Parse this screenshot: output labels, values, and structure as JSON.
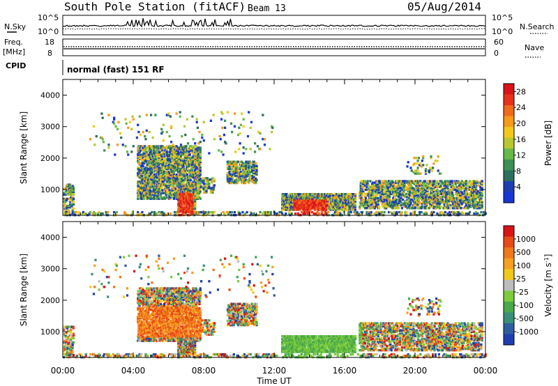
{
  "header": {
    "station": "South Pole Station (fitACF)",
    "beam": "Beam 13",
    "date": "05/Aug/2014"
  },
  "panels": {
    "nsky_label": "N.Sky",
    "nsky_ticks": [
      "10^5",
      "10^0"
    ],
    "nsearch_label": "N.Search",
    "nsearch_ticks": [
      "10^5",
      "10^0"
    ],
    "freq_label": "Freq.",
    "freq_unit": "[MHz]",
    "freq_ticks": [
      "18",
      "8"
    ],
    "nave_label": "Nave",
    "nave_ticks": [
      "60",
      "0"
    ],
    "cpid_label": "CPID",
    "cpid_text": "normal (fast) 151 RF"
  },
  "chart_data": [
    {
      "type": "heatmap",
      "name": "power",
      "ylabel": "Slant Range [km]",
      "xlabel": "",
      "x_ticks": [
        "00:00",
        "04:00",
        "08:00",
        "12:00",
        "16:00",
        "20:00",
        "00:00"
      ],
      "y_ticks": [
        "1000",
        "2000",
        "3000",
        "4000"
      ],
      "ylim": [
        180,
        4500
      ],
      "colorbar_label": "Power [dB]",
      "colorbar_ticks": [
        "4",
        "8",
        "12",
        "16",
        "20",
        "24",
        "28"
      ],
      "colorbar_range": [
        0,
        30
      ],
      "colors": [
        "#1a35d6",
        "#1f3fb0",
        "#2e6e5e",
        "#3d8f55",
        "#66b84a",
        "#b8c830",
        "#f2c81a",
        "#f59a1a",
        "#f06a1a",
        "#e8301a",
        "#d8141a"
      ]
    },
    {
      "type": "heatmap",
      "name": "velocity",
      "ylabel": "Slant Range [km]",
      "xlabel": "Time UT",
      "x_ticks": [
        "00:00",
        "04:00",
        "08:00",
        "12:00",
        "16:00",
        "20:00",
        "00:00"
      ],
      "y_ticks": [
        "1000",
        "2000",
        "3000",
        "4000"
      ],
      "ylim": [
        180,
        4500
      ],
      "colorbar_label": "Velocity [m s",
      "colorbar_label_sup": "-1",
      "colorbar_ticks": [
        "1000",
        "500",
        "100",
        "25",
        "-25",
        "-100",
        "-500",
        "-1000"
      ],
      "colors": [
        "#1f3fb0",
        "#2e5e9e",
        "#3a8f7a",
        "#4aa84a",
        "#7ccc3c",
        "#bdbdbd",
        "#f2c81a",
        "#f5a020",
        "#f07818",
        "#e84a18",
        "#d81414"
      ]
    }
  ]
}
